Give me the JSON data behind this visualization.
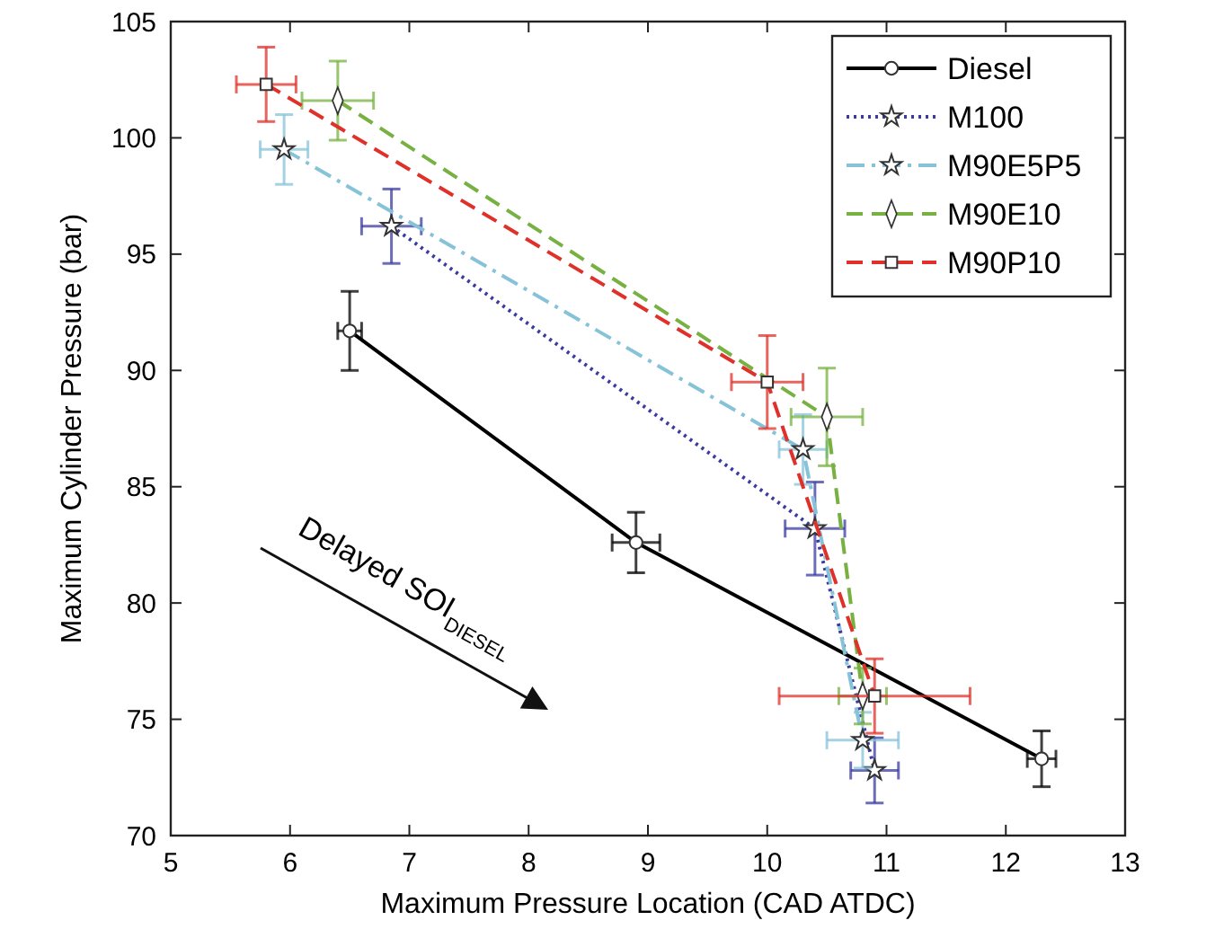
{
  "chart_data": {
    "type": "line",
    "xlabel": "Maximum Pressure Location (CAD ATDC)",
    "ylabel": "Maximum Cylinder Pressure (bar)",
    "xlim": [
      5,
      13
    ],
    "xticks": [
      5,
      6,
      7,
      8,
      9,
      10,
      11,
      12,
      13
    ],
    "ylim": [
      70,
      105
    ],
    "yticks": [
      70,
      75,
      80,
      85,
      90,
      95,
      100,
      105
    ],
    "grid": false,
    "legend": "top right",
    "annotations": [
      "Delayed SOI$_{DIESEL}$"
    ],
    "series": [
      {
        "name": "Diesel",
        "color": "#000000",
        "marker": "circle",
        "line_style": "solid",
        "x": [
          6.5,
          8.9,
          12.3
        ],
        "values": [
          91.7,
          82.6,
          73.3
        ],
        "errors": [
          1.7,
          1.3,
          1.2
        ],
        "xerrors": [
          0.1,
          0.2,
          0.12
        ]
      },
      {
        "name": "M100",
        "color": "#3b3ba0",
        "marker": "star",
        "line_style": "dotted",
        "x": [
          6.85,
          10.4,
          10.9
        ],
        "values": [
          96.2,
          83.2,
          72.8
        ],
        "errors": [
          1.6,
          2,
          1.4
        ],
        "xerrors": [
          0.25,
          0.25,
          0.2
        ]
      },
      {
        "name": "M90E5P5",
        "color": "#87c3d8",
        "marker": "star",
        "line_style": "dashdot",
        "x": [
          5.95,
          10.3,
          10.8
        ],
        "values": [
          99.5,
          86.6,
          74.1
        ],
        "errors": [
          1.5,
          1.5,
          1.2
        ],
        "xerrors": [
          0.2,
          0.2,
          0.3
        ]
      },
      {
        "name": "M90E10",
        "color": "#77b142",
        "marker": "diamond",
        "line_style": "dashed",
        "x": [
          6.4,
          10.5,
          10.8
        ],
        "values": [
          101.6,
          88,
          76
        ],
        "errors": [
          1.7,
          2.1,
          1.2
        ],
        "xerrors": [
          0.3,
          0.3,
          0.2
        ]
      },
      {
        "name": "M90P10",
        "color": "#e0302a",
        "marker": "square",
        "line_style": "dashed",
        "x": [
          5.8,
          10,
          10.9
        ],
        "values": [
          102.3,
          89.5,
          76
        ],
        "errors": [
          1.6,
          2,
          1.6
        ],
        "xerrors": [
          0.25,
          0.3,
          0.8
        ]
      }
    ]
  }
}
